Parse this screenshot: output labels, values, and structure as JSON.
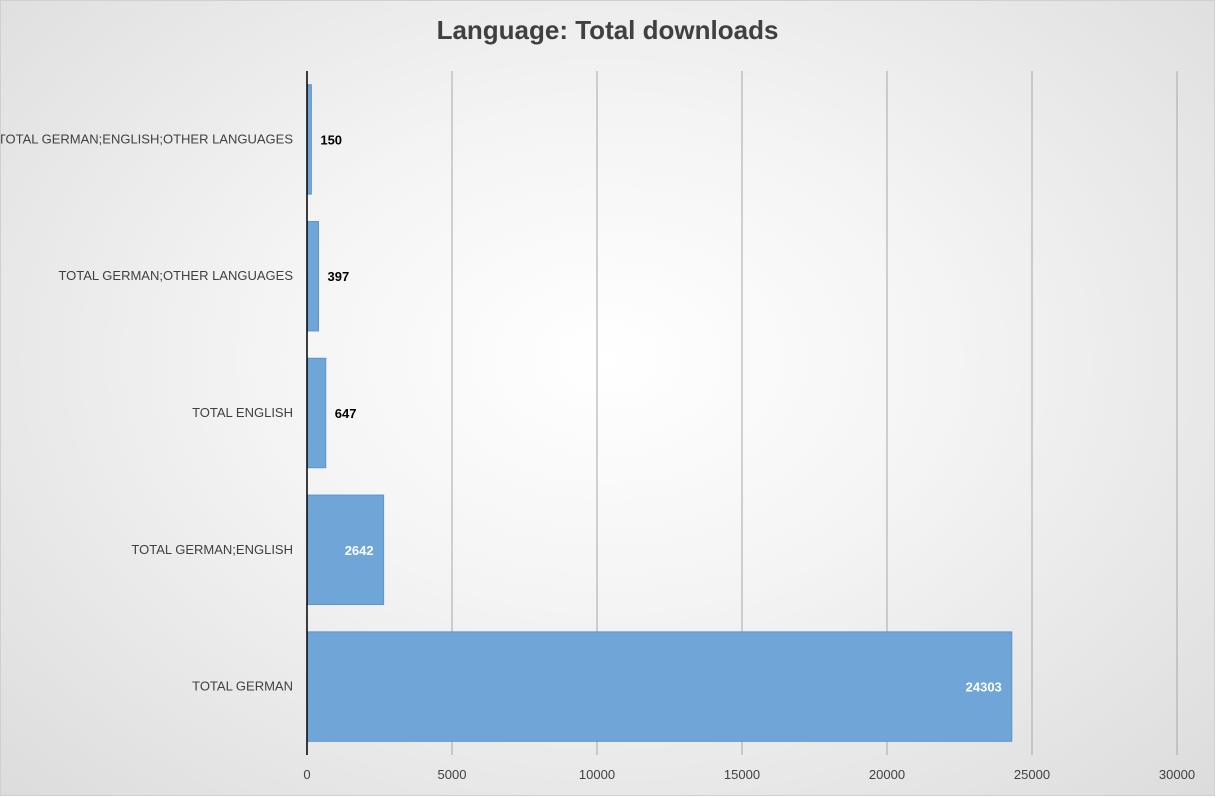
{
  "chart_data": {
    "type": "bar",
    "orientation": "horizontal",
    "title": "Language: Total downloads",
    "categories": [
      "TOTAL GERMAN;ENGLISH;OTHER LANGUAGES",
      "TOTAL GERMAN;OTHER LANGUAGES",
      "TOTAL ENGLISH",
      "TOTAL GERMAN;ENGLISH",
      "TOTAL GERMAN"
    ],
    "values": [
      150,
      397,
      647,
      2642,
      24303
    ],
    "xlim": [
      0,
      30000
    ],
    "xticks": [
      0,
      5000,
      10000,
      15000,
      20000,
      25000,
      30000
    ],
    "xlabel": "",
    "ylabel": "",
    "grid": "vertical",
    "legend": "none",
    "colors": {
      "bar": "#6fa5d7",
      "bar_edge": "#5b95cc",
      "label_inside": "#ffffff",
      "label_outside": "#000000",
      "grid": "#a6a6a6",
      "axis": "#000000",
      "text": "#404040"
    }
  }
}
